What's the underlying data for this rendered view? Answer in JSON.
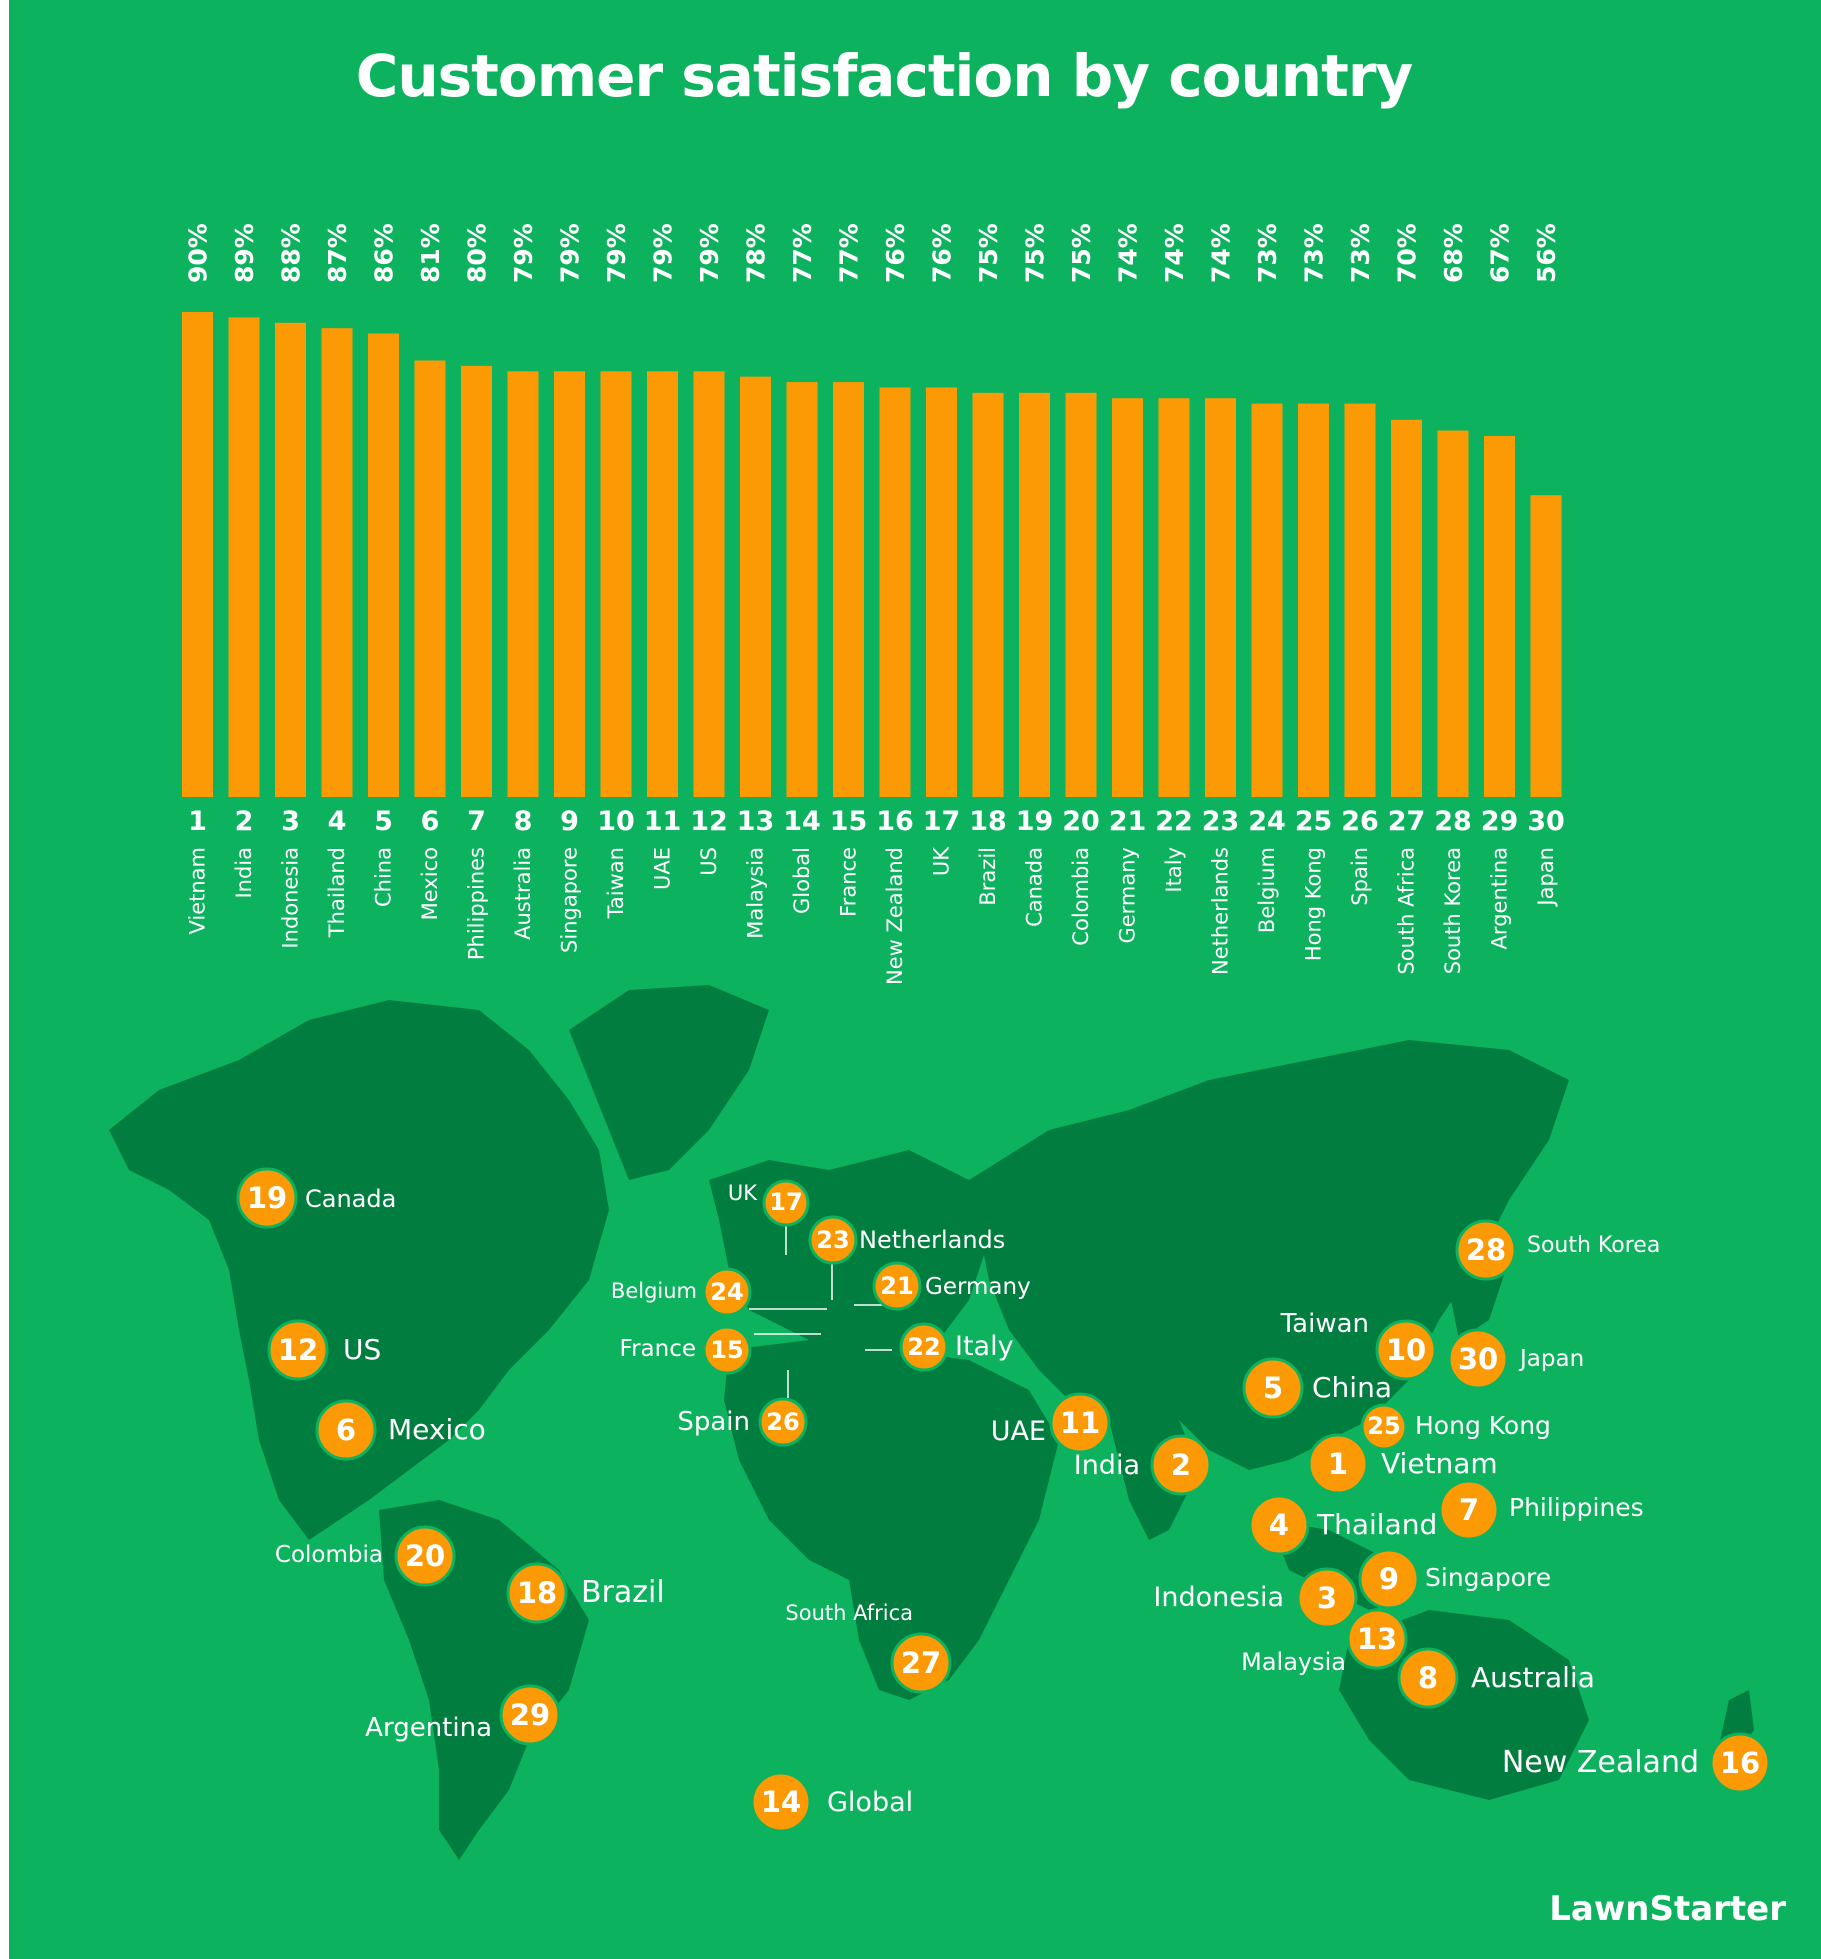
{
  "title": "Customer satisfaction by country",
  "brand": "LawnStarter",
  "colors": {
    "background": "#0db25f",
    "bar": "#fb9a05",
    "land": "#007d3f",
    "text": "#ffffff"
  },
  "chart_data": {
    "type": "bar",
    "title": "Customer satisfaction by country",
    "xlabel": "",
    "ylabel": "",
    "grid": false,
    "unit": "%",
    "categories": [
      "Vietnam",
      "India",
      "Indonesia",
      "Thailand",
      "China",
      "Mexico",
      "Philippines",
      "Australia",
      "Singapore",
      "Taiwan",
      "UAE",
      "US",
      "Malaysia",
      "Global",
      "France",
      "New Zealand",
      "UK",
      "Brazil",
      "Canada",
      "Colombia",
      "Germany",
      "Italy",
      "Netherlands",
      "Belgium",
      "Hong Kong",
      "Spain",
      "South Africa",
      "South Korea",
      "Argentina",
      "Japan"
    ],
    "ranks": [
      "1",
      "2",
      "3",
      "4",
      "5",
      "6",
      "7",
      "8",
      "9",
      "10",
      "11",
      "12",
      "13",
      "14",
      "15",
      "16",
      "17",
      "18",
      "19",
      "20",
      "21",
      "22",
      "23",
      "24",
      "25",
      "26",
      "27",
      "28",
      "29",
      "30"
    ],
    "values": [
      90,
      89,
      88,
      87,
      86,
      81,
      80,
      79,
      79,
      79,
      79,
      79,
      78,
      77,
      77,
      76,
      76,
      75,
      75,
      75,
      74,
      74,
      74,
      73,
      73,
      73,
      70,
      68,
      67,
      56
    ],
    "labels": [
      "90%",
      "89%",
      "88%",
      "87%",
      "86%",
      "81%",
      "80%",
      "79%",
      "79%",
      "79%",
      "79%",
      "79%",
      "78%",
      "77%",
      "77%",
      "76%",
      "76%",
      "75%",
      "75%",
      "75%",
      "74%",
      "74%",
      "74%",
      "73%",
      "73%",
      "73%",
      "70%",
      "68%",
      "67%",
      "56%"
    ]
  },
  "map": {
    "markers": [
      {
        "rank": "19",
        "label": "Canada"
      },
      {
        "rank": "12",
        "label": "US"
      },
      {
        "rank": "6",
        "label": "Mexico"
      },
      {
        "rank": "20",
        "label": "Colombia"
      },
      {
        "rank": "18",
        "label": "Brazil"
      },
      {
        "rank": "29",
        "label": "Argentina"
      },
      {
        "rank": "17",
        "label": "UK"
      },
      {
        "rank": "23",
        "label": "Netherlands"
      },
      {
        "rank": "24",
        "label": "Belgium"
      },
      {
        "rank": "21",
        "label": "Germany"
      },
      {
        "rank": "15",
        "label": "France"
      },
      {
        "rank": "22",
        "label": "Italy"
      },
      {
        "rank": "26",
        "label": "Spain"
      },
      {
        "rank": "11",
        "label": "UAE"
      },
      {
        "rank": "2",
        "label": "India"
      },
      {
        "rank": "27",
        "label": "South Africa"
      },
      {
        "rank": "14",
        "label": "Global"
      },
      {
        "rank": "28",
        "label": "South Korea"
      },
      {
        "rank": "10",
        "label": "Taiwan"
      },
      {
        "rank": "30",
        "label": "Japan"
      },
      {
        "rank": "5",
        "label": "China"
      },
      {
        "rank": "25",
        "label": "Hong Kong"
      },
      {
        "rank": "1",
        "label": "Vietnam"
      },
      {
        "rank": "7",
        "label": "Philippines"
      },
      {
        "rank": "4",
        "label": "Thailand"
      },
      {
        "rank": "9",
        "label": "Singapore"
      },
      {
        "rank": "3",
        "label": "Indonesia"
      },
      {
        "rank": "13",
        "label": "Malaysia"
      },
      {
        "rank": "8",
        "label": "Australia"
      },
      {
        "rank": "16",
        "label": "New Zealand"
      }
    ]
  }
}
